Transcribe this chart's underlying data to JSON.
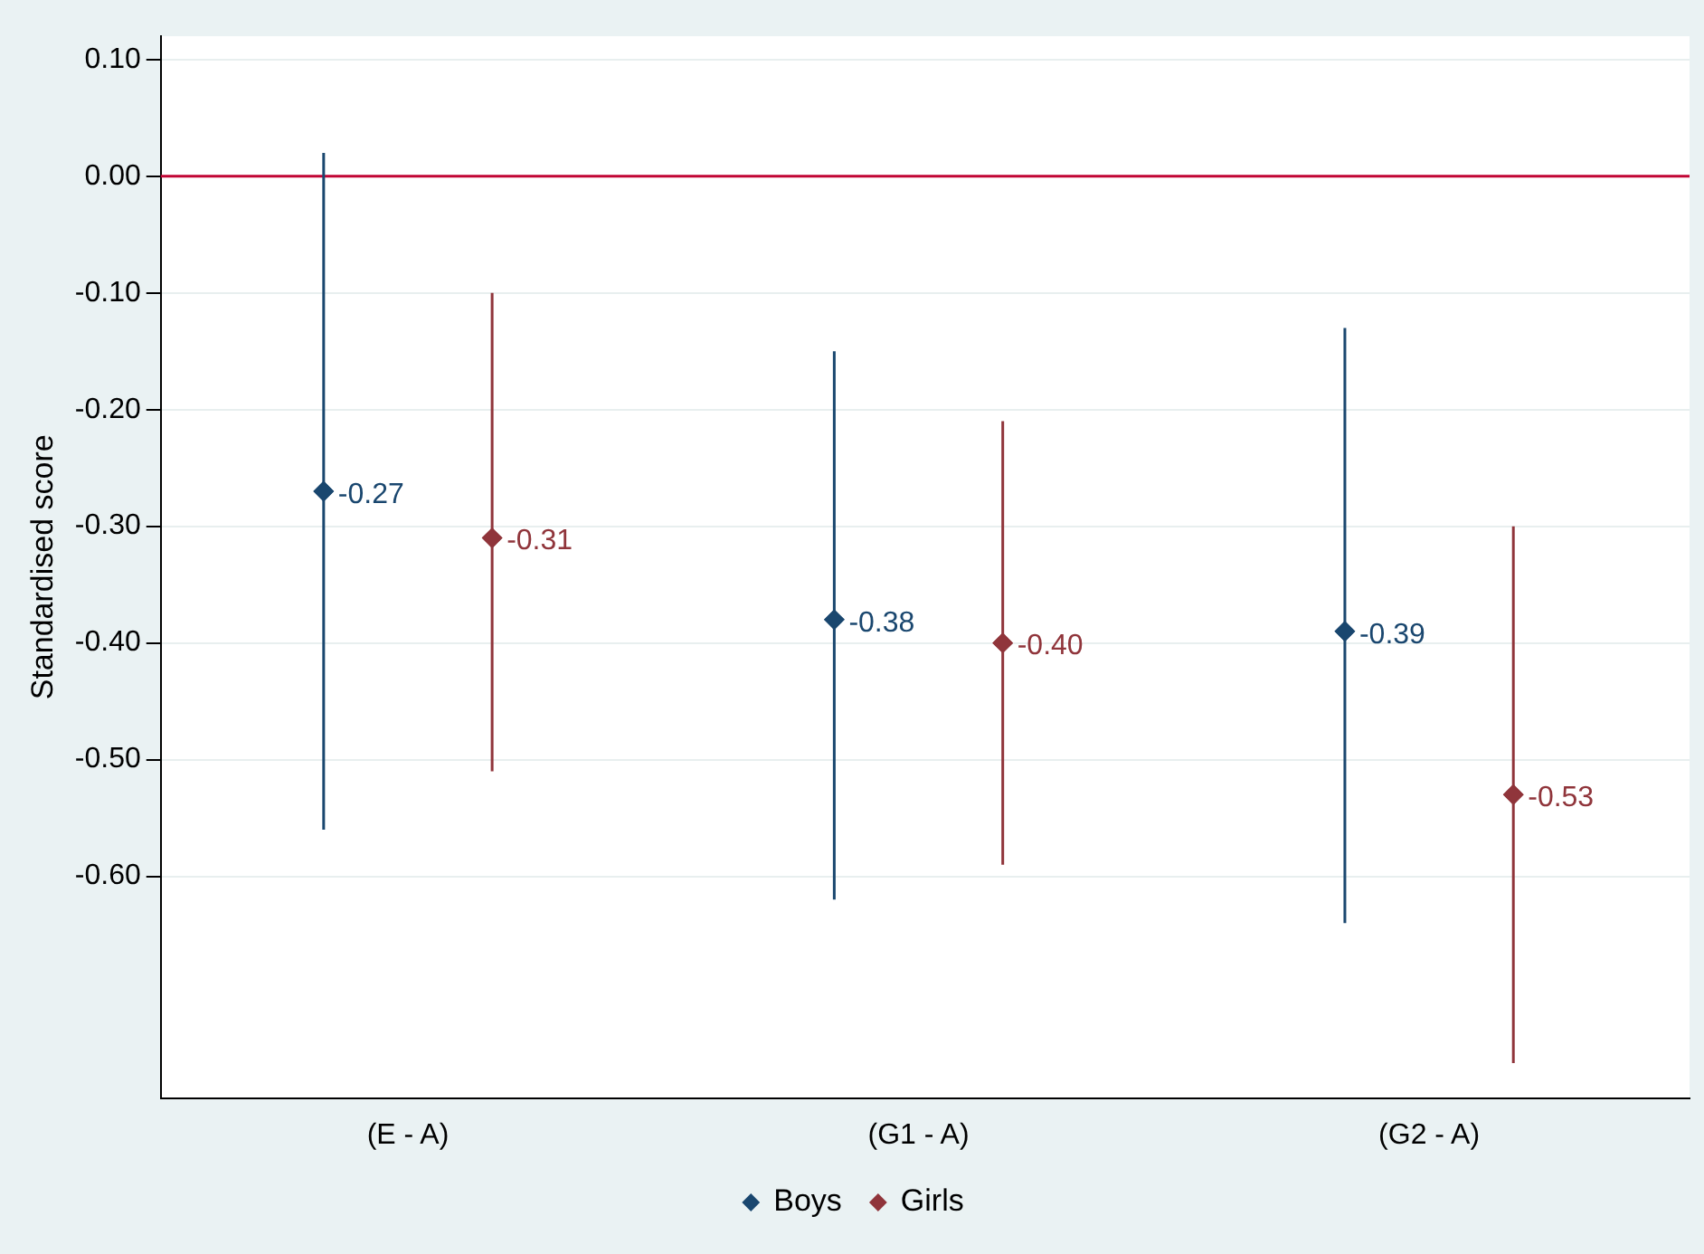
{
  "chart_data": {
    "type": "scatter",
    "ylabel": "Standardised score",
    "categories": [
      "(E - A)",
      "(G1 - A)",
      "(G2 - A)"
    ],
    "series": [
      {
        "name": "Boys",
        "color": "#1a476f",
        "values": [
          -0.27,
          -0.38,
          -0.39
        ],
        "value_labels": [
          "-0.27",
          "-0.38",
          "-0.39"
        ],
        "errors": [
          [
            -0.56,
            0.02
          ],
          [
            -0.62,
            -0.15
          ],
          [
            -0.64,
            -0.13
          ]
        ]
      },
      {
        "name": "Girls",
        "color": "#90353b",
        "values": [
          -0.31,
          -0.4,
          -0.53
        ],
        "value_labels": [
          "-0.31",
          "-0.40",
          "-0.53"
        ],
        "errors": [
          [
            -0.51,
            -0.1
          ],
          [
            -0.59,
            -0.21
          ],
          [
            -0.76,
            -0.3
          ]
        ]
      }
    ],
    "ylim": [
      -0.79,
      0.12
    ],
    "yticks": [
      {
        "value": 0.1,
        "label": "0.10"
      },
      {
        "value": 0,
        "label": "0.00"
      },
      {
        "value": -0.1,
        "label": "-0.10"
      },
      {
        "value": -0.2,
        "label": "-0.20"
      },
      {
        "value": -0.3,
        "label": "-0.30"
      },
      {
        "value": -0.4,
        "label": "-0.40"
      },
      {
        "value": -0.5,
        "label": "-0.50"
      },
      {
        "value": -0.6,
        "label": "-0.60"
      }
    ],
    "ref_lines": [
      {
        "axis": "y",
        "value": 0,
        "color": "#c10534"
      }
    ],
    "grid": "y",
    "legend": "bottom",
    "marker": "diamond"
  }
}
